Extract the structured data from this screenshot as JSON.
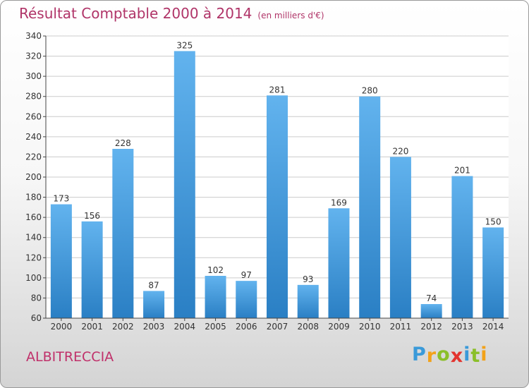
{
  "header": {
    "title": "Résultat Comptable 2000 à 2014",
    "unit": "(en milliers d'€)"
  },
  "footer": {
    "commune": "ALBITRECCIA",
    "logo_letters": [
      "P",
      "r",
      "o",
      "x",
      "i",
      "t",
      "i"
    ],
    "logo_colors": [
      "#3a9ad9",
      "#f2a21a",
      "#8bbf2a",
      "#e3342f",
      "#3a9ad9",
      "#8bbf2a",
      "#f2a21a"
    ]
  },
  "colors": {
    "bar_top": "#62b3ee",
    "bar_bottom": "#2a7fc4",
    "title": "#b03468",
    "grid": "#cccccc"
  },
  "chart_data": {
    "type": "bar",
    "title": "Résultat Comptable 2000 à 2014",
    "subtitle": "(en milliers d'€)",
    "categories": [
      "2000",
      "2001",
      "2002",
      "2003",
      "2004",
      "2005",
      "2006",
      "2007",
      "2008",
      "2009",
      "2010",
      "2011",
      "2012",
      "2013",
      "2014"
    ],
    "values": [
      173,
      156,
      228,
      87,
      325,
      102,
      97,
      281,
      93,
      169,
      280,
      220,
      74,
      201,
      150
    ],
    "ylim": [
      60,
      340
    ],
    "yticks": [
      60,
      80,
      100,
      120,
      140,
      160,
      180,
      200,
      220,
      240,
      260,
      280,
      300,
      320,
      340
    ],
    "grid": true,
    "xlabel": "",
    "ylabel": ""
  }
}
